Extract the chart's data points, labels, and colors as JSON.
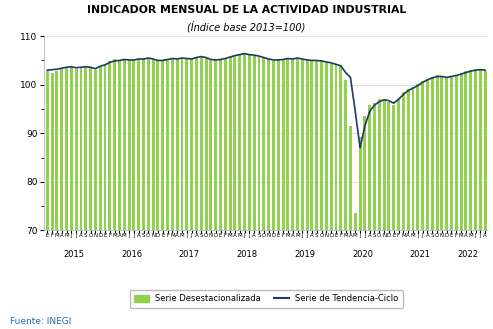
{
  "title": "INDICADOR MENSUAL DE LA ACTIVIDAD INDUSTRIAL",
  "subtitle": "(Índice base 2013=100)",
  "background_color": "#ffffff",
  "bar_color": "#92d050",
  "line_color": "#1f3864",
  "legend_bar_label": "Serie Desestacionalizada",
  "legend_line_label": "Serie de Tendencia-Ciclo",
  "source_text": "Fuente: INEGI",
  "ylim": [
    70,
    110
  ],
  "yticks": [
    70,
    80,
    90,
    100,
    110
  ],
  "year_labels": [
    "2015",
    "2016",
    "2017",
    "2018",
    "2019",
    "2020",
    "2021",
    "2022"
  ],
  "year_starts": [
    0,
    12,
    24,
    36,
    48,
    60,
    72,
    84
  ],
  "bar_values": [
    102.8,
    102.4,
    102.9,
    103.3,
    103.5,
    103.7,
    103.2,
    103.4,
    103.6,
    103.5,
    103.1,
    103.9,
    104.3,
    104.8,
    105.2,
    104.9,
    105.3,
    105.1,
    105.0,
    105.4,
    105.2,
    105.5,
    105.3,
    104.8,
    104.9,
    105.1,
    105.5,
    105.2,
    105.6,
    105.3,
    105.2,
    105.8,
    105.9,
    105.5,
    105.1,
    105.0,
    105.3,
    105.4,
    105.8,
    106.2,
    106.3,
    106.5,
    106.1,
    106.0,
    105.8,
    105.5,
    105.2,
    104.9,
    105.1,
    105.2,
    105.5,
    105.3,
    105.6,
    105.4,
    105.1,
    104.9,
    105.0,
    104.8,
    104.6,
    104.3,
    104.1,
    103.8,
    101.0,
    91.5,
    73.5,
    89.2,
    93.5,
    95.8,
    96.3,
    97.1,
    96.8,
    96.5,
    95.8,
    97.1,
    98.5,
    99.2,
    99.5,
    100.1,
    100.8,
    101.2,
    101.5,
    101.9,
    101.6,
    101.3,
    101.8,
    102.1,
    102.5,
    102.8,
    103.1,
    103.3,
    103.0,
    102.8
  ],
  "trend_values": [
    103.0,
    103.1,
    103.2,
    103.4,
    103.6,
    103.7,
    103.5,
    103.6,
    103.7,
    103.6,
    103.3,
    103.8,
    104.1,
    104.6,
    104.9,
    105.0,
    105.2,
    105.1,
    105.1,
    105.3,
    105.3,
    105.5,
    105.3,
    105.0,
    105.0,
    105.2,
    105.4,
    105.3,
    105.5,
    105.4,
    105.3,
    105.6,
    105.8,
    105.6,
    105.2,
    105.1,
    105.2,
    105.4,
    105.7,
    106.0,
    106.2,
    106.4,
    106.2,
    106.1,
    105.9,
    105.6,
    105.3,
    105.1,
    105.1,
    105.2,
    105.4,
    105.3,
    105.5,
    105.3,
    105.1,
    105.0,
    105.0,
    104.9,
    104.7,
    104.5,
    104.2,
    103.9,
    102.5,
    101.5,
    94.5,
    87.0,
    91.5,
    94.5,
    95.8,
    96.5,
    96.9,
    96.7,
    96.2,
    97.0,
    98.0,
    98.8,
    99.3,
    99.8,
    100.5,
    101.0,
    101.4,
    101.7,
    101.7,
    101.5,
    101.7,
    101.9,
    102.2,
    102.5,
    102.8,
    103.0,
    103.1,
    103.0
  ]
}
